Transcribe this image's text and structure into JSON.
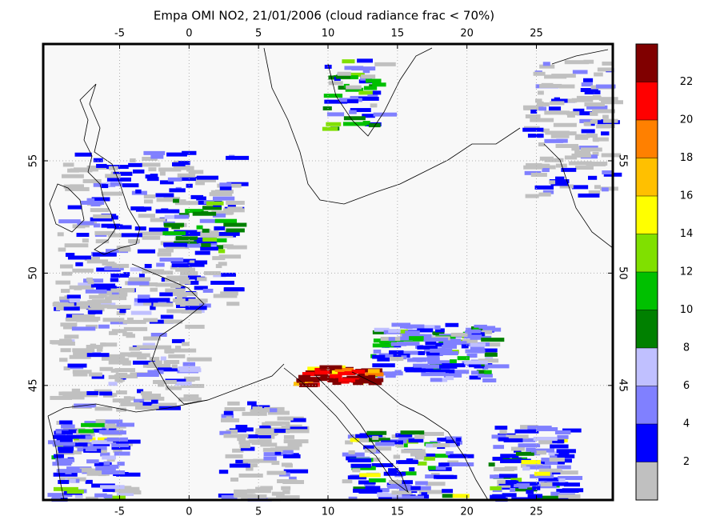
{
  "chart_data": {
    "type": "map",
    "title": "Empa OMI NO2, 21/01/2006 (cloud radiance frac < 70%)",
    "xlim": [
      -10.5,
      30.5
    ],
    "ylim": [
      39.9,
      60.2
    ],
    "xticks": [
      -5,
      0,
      5,
      10,
      15,
      20,
      25
    ],
    "yticks": [
      45,
      50,
      55
    ],
    "grid": true,
    "colorbar": {
      "clim": [
        0,
        24
      ],
      "ticks": [
        2,
        4,
        6,
        8,
        10,
        12,
        14,
        16,
        18,
        20,
        22
      ],
      "colors": [
        "#c0c0c0",
        "#0000ff",
        "#8080ff",
        "#c0c0ff",
        "#008000",
        "#00c000",
        "#80e000",
        "#ffff00",
        "#ffc000",
        "#ff8000",
        "#ff0000",
        "#800000"
      ]
    }
  }
}
